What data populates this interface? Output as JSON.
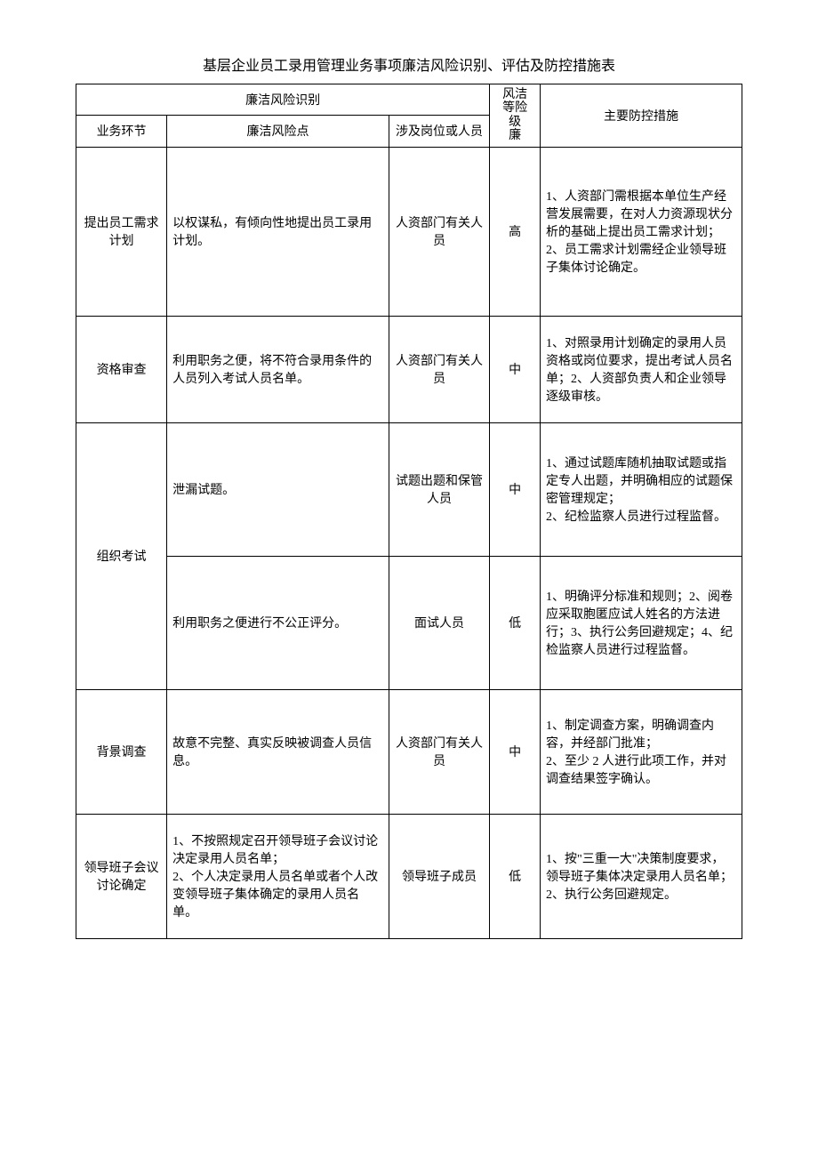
{
  "document": {
    "title": "基层企业员工录用管理业务事项廉洁风险识别、评估及防控措施表",
    "font_family": "SimSun",
    "title_fontsize": 16,
    "body_fontsize": 14,
    "border_color": "#000000",
    "background_color": "#ffffff"
  },
  "headers": {
    "group1": "廉洁风险识别",
    "col1": "业务环节",
    "col2": "廉洁风险点",
    "col3": "涉及岗位或人员",
    "col4_line1": "风洁",
    "col4_line2": "等险",
    "col4_line3": "级",
    "col4_line4": "廉",
    "col5": "主要防控措施"
  },
  "column_widths": {
    "stage": 90,
    "risk": 220,
    "personnel": 100,
    "level": 50,
    "measures": 200
  },
  "rows": [
    {
      "stage": "提出员工需求计划",
      "risk": "以权谋私，有倾向性地提出员工录用计划。",
      "personnel": "人资部门有关人员",
      "level": "高",
      "measures": "1、人资部门需根据本单位生产经营发展需要，在对人力资源现状分析的基础上提出员工需求计划；\n2、员工需求计划需经企业领导班子集体讨论确定。",
      "rowspan_stage": 1,
      "height": 190
    },
    {
      "stage": "资格审查",
      "risk": "利用职务之便，将不符合录用条件的人员列入考试人员名单。",
      "personnel": "人资部门有关人员",
      "level": "中",
      "measures": "1、对照录用计划确定的录用人员资格或岗位要求，提出考试人员名单；2、人资部负责人和企业领导逐级审核。",
      "rowspan_stage": 1,
      "height": 120
    },
    {
      "stage": "组织考试",
      "risk": "泄漏试题。",
      "personnel": "试题出题和保管人员",
      "level": "中",
      "measures": "1、通过试题库随机抽取试题或指定专人出题，并明确相应的试题保密管理规定；\n2、纪检监察人员进行过程监督。",
      "rowspan_stage": 2,
      "height": 150
    },
    {
      "stage": "",
      "risk": "利用职务之便进行不公正评分。",
      "personnel": "面试人员",
      "level": "低",
      "measures": "1、明确评分标准和规则；2、阅卷应采取胞匿应试人姓名的方法进行；3、执行公务回避规定；4、纪检监察人员进行过程监督。",
      "rowspan_stage": 0,
      "height": 150
    },
    {
      "stage": "背景调查",
      "risk": "故意不完整、真实反映被调查人员信息。",
      "personnel": "人资部门有关人员",
      "level": "中",
      "measures": "1、制定调查方案，明确调查内容，并经部门批准；\n2、至少 2 人进行此项工作，并对调查结果签字确认。",
      "rowspan_stage": 1,
      "height": 140
    },
    {
      "stage": "领导班子会议讨论确定",
      "risk": "1、不按照规定召开领导班子会议讨论决定录用人员名单；\n2、个人决定录用人员名单或者个人改变领导班子集体确定的录用人员名单。",
      "personnel": "领导班子成员",
      "level": "低",
      "measures": "1、按\"三重一大\"决策制度要求，领导班子集体决定录用人员名单；2、执行公务回避规定。",
      "rowspan_stage": 1,
      "height": 140
    }
  ]
}
